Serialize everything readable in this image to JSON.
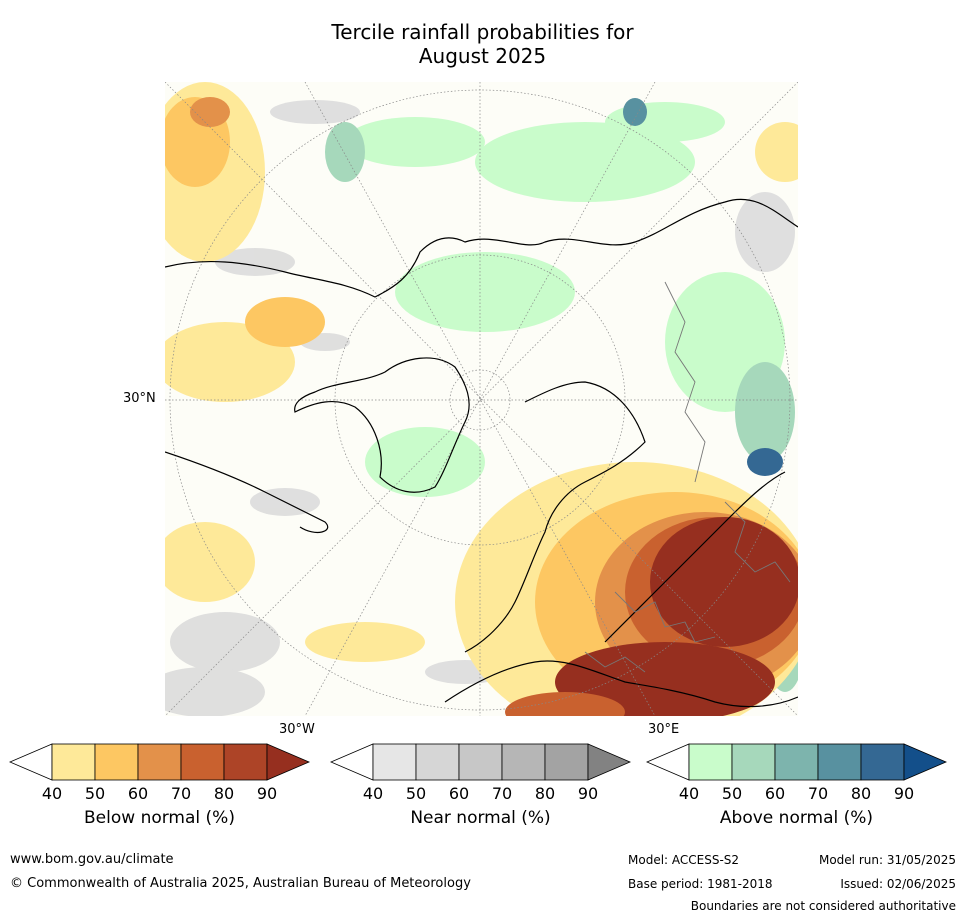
{
  "title": {
    "line1": "Tercile rainfall probabilities for",
    "line2": "August 2025"
  },
  "map": {
    "lat_label": "30°N",
    "lon_labels": [
      "30°W",
      "30°E"
    ]
  },
  "colorbars": [
    {
      "name": "below",
      "title": "Below normal (%)",
      "ticks": [
        "40",
        "50",
        "60",
        "70",
        "80",
        "90"
      ],
      "colors": [
        "#ffffff",
        "#fee999",
        "#fdc762",
        "#e3914a",
        "#c9612f",
        "#ad4427",
        "#962f1f"
      ]
    },
    {
      "name": "near",
      "title": "Near normal (%)",
      "ticks": [
        "40",
        "50",
        "60",
        "70",
        "80",
        "90"
      ],
      "colors": [
        "#ffffff",
        "#e6e6e6",
        "#d6d6d6",
        "#c7c7c7",
        "#b6b6b6",
        "#a3a3a3",
        "#828282"
      ]
    },
    {
      "name": "above",
      "title": "Above normal (%)",
      "ticks": [
        "40",
        "50",
        "60",
        "70",
        "80",
        "90"
      ],
      "colors": [
        "#ffffff",
        "#c9fccb",
        "#a6d8bb",
        "#7db4ad",
        "#5891a0",
        "#346893",
        "#134f8a"
      ]
    }
  ],
  "footer": {
    "website": "www.bom.gov.au/climate",
    "copyright": "© Commonwealth of Australia 2025, Australian Bureau of Meteorology",
    "model": "Model: ACCESS-S2",
    "base_period": "Base period: 1981-2018",
    "model_run": "Model run: 31/05/2025",
    "issued": "Issued: 02/06/2025",
    "disclaimer": "Boundaries are not considered authoritative"
  }
}
